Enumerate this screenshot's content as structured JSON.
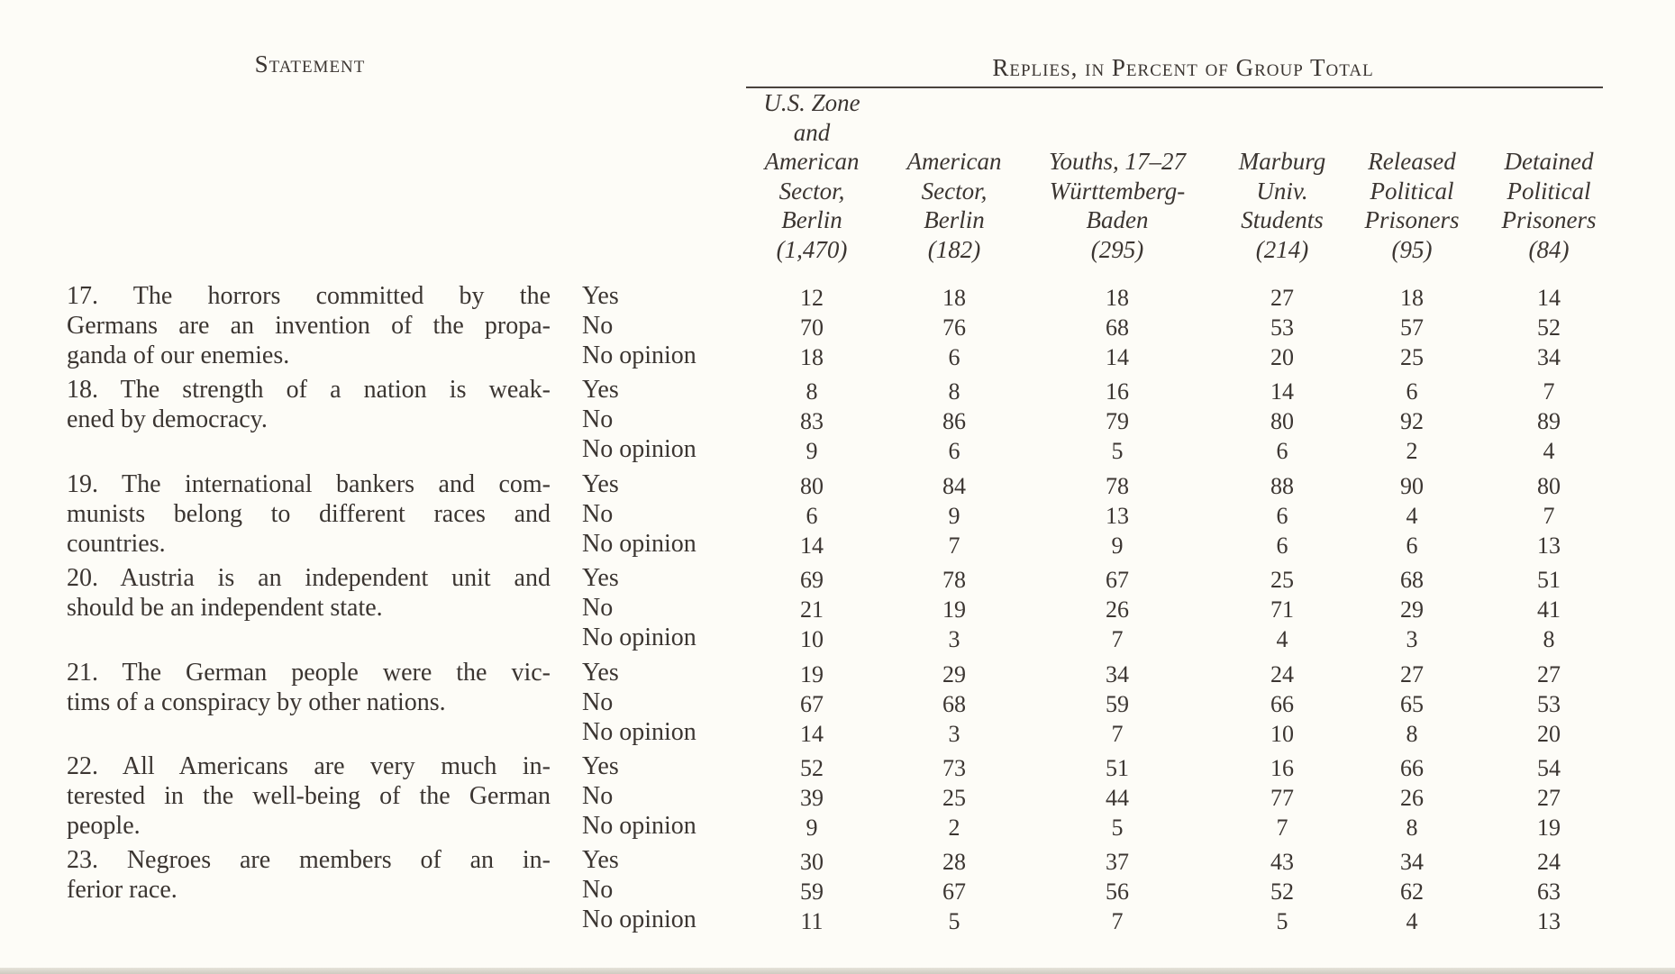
{
  "header": {
    "statement": "Statement",
    "replies": "Replies, in Percent of Group Total"
  },
  "columns": [
    {
      "lines": [
        "U.S. Zone",
        "and",
        "American",
        "Sector,",
        "Berlin",
        "(1,470)"
      ]
    },
    {
      "lines": [
        "American",
        "Sector,",
        "Berlin",
        "(182)"
      ]
    },
    {
      "lines": [
        "Youths, 17–27",
        "Württemberg-",
        "Baden",
        "(295)"
      ]
    },
    {
      "lines": [
        "Marburg",
        "Univ.",
        "Students",
        "(214)"
      ]
    },
    {
      "lines": [
        "Released",
        "Political",
        "Prisoners",
        "(95)"
      ]
    },
    {
      "lines": [
        "Detained",
        "Political",
        "Prisoners",
        "(84)"
      ]
    }
  ],
  "answers": [
    "Yes",
    "No",
    "No opinion"
  ],
  "statements": [
    {
      "lines": [
        "17. The horrors committed by the",
        "Germans are an invention of the propa-",
        "ganda of our enemies."
      ],
      "values": [
        [
          12,
          18,
          18,
          27,
          18,
          14
        ],
        [
          70,
          76,
          68,
          53,
          57,
          52
        ],
        [
          18,
          6,
          14,
          20,
          25,
          34
        ]
      ]
    },
    {
      "lines": [
        "18. The strength of a nation is weak-",
        "ened by democracy."
      ],
      "values": [
        [
          8,
          8,
          16,
          14,
          6,
          7
        ],
        [
          83,
          86,
          79,
          80,
          92,
          89
        ],
        [
          9,
          6,
          5,
          6,
          2,
          4
        ]
      ]
    },
    {
      "lines": [
        "19. The international bankers and com-",
        "munists belong to different races and",
        "countries."
      ],
      "values": [
        [
          80,
          84,
          78,
          88,
          90,
          80
        ],
        [
          6,
          9,
          13,
          6,
          4,
          7
        ],
        [
          14,
          7,
          9,
          6,
          6,
          13
        ]
      ]
    },
    {
      "lines": [
        "20. Austria is an independent unit and",
        "should be an independent state."
      ],
      "values": [
        [
          69,
          78,
          67,
          25,
          68,
          51
        ],
        [
          21,
          19,
          26,
          71,
          29,
          41
        ],
        [
          10,
          3,
          7,
          4,
          3,
          8
        ]
      ]
    },
    {
      "lines": [
        "21. The German people were the vic-",
        "tims of a conspiracy by other nations."
      ],
      "values": [
        [
          19,
          29,
          34,
          24,
          27,
          27
        ],
        [
          67,
          68,
          59,
          66,
          65,
          53
        ],
        [
          14,
          3,
          7,
          10,
          8,
          20
        ]
      ]
    },
    {
      "lines": [
        "22. All Americans are very much in-",
        "terested in the well-being of the German",
        "people."
      ],
      "values": [
        [
          52,
          73,
          51,
          16,
          66,
          54
        ],
        [
          39,
          25,
          44,
          77,
          26,
          27
        ],
        [
          9,
          2,
          5,
          7,
          8,
          19
        ]
      ]
    },
    {
      "lines": [
        "23. Negroes are members of an in-",
        "ferior race."
      ],
      "values": [
        [
          30,
          28,
          37,
          43,
          34,
          24
        ],
        [
          59,
          67,
          56,
          52,
          62,
          63
        ],
        [
          11,
          5,
          7,
          5,
          4,
          13
        ]
      ]
    }
  ]
}
